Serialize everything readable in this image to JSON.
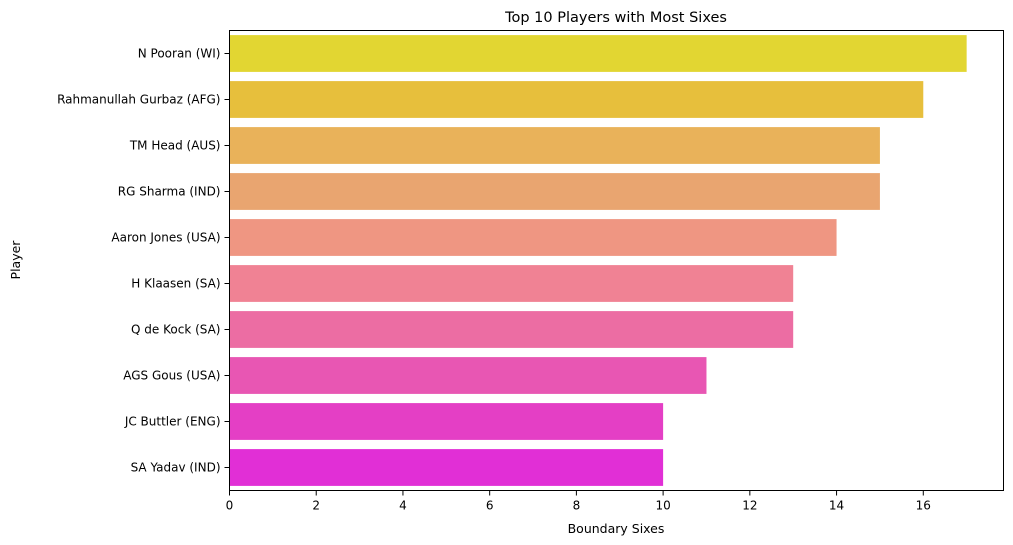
{
  "chart_data": {
    "type": "bar",
    "orientation": "horizontal",
    "title": "Top 10 Players with Most Sixes",
    "xlabel": "Boundary Sixes",
    "ylabel": "Player",
    "categories": [
      "N Pooran (WI)",
      "Rahmanullah Gurbaz (AFG)",
      "TM Head (AUS)",
      "RG Sharma (IND)",
      "Aaron Jones (USA)",
      "H Klaasen (SA)",
      "Q de Kock (SA)",
      "AGS Gous (USA)",
      "JC Buttler (ENG)",
      "SA Yadav (IND)"
    ],
    "values": [
      17,
      16,
      15,
      15,
      14,
      13,
      13,
      11,
      10,
      10
    ],
    "colors": [
      "#e2d632",
      "#e7bf3c",
      "#e9b25a",
      "#e9a570",
      "#ef9682",
      "#f08294",
      "#ec6da3",
      "#e856b3",
      "#e43fc5",
      "#e12fd6"
    ],
    "xlim": [
      0,
      17.85
    ],
    "xticks": [
      "0",
      "2",
      "4",
      "6",
      "8",
      "10",
      "12",
      "14",
      "16"
    ],
    "grid": false,
    "legend": "none"
  }
}
